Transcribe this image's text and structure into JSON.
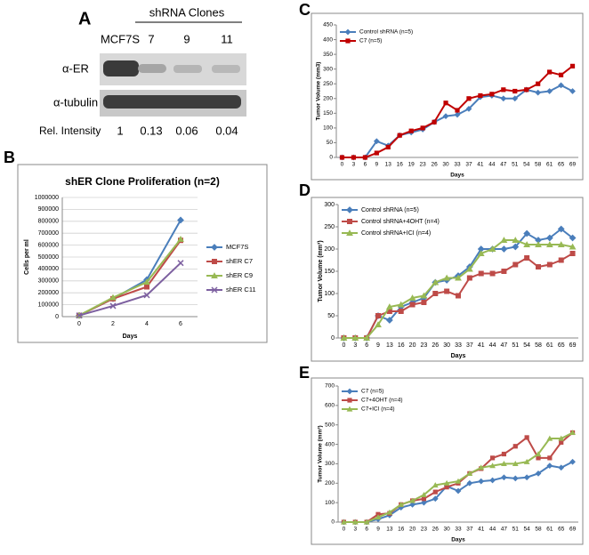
{
  "blot": {
    "panel": "A",
    "group_label": "shRNA Clones",
    "lanes": [
      "MCF7S",
      "7",
      "9",
      "11"
    ],
    "rows": [
      "α-ER",
      "α-tubulin"
    ],
    "intensity_label": "Rel. Intensity",
    "intensities": [
      "1",
      "0.13",
      "0.06",
      "0.04"
    ]
  },
  "chart_data": [
    {
      "type": "line",
      "panel": "B",
      "title": "shER Clone Proliferation (n=2)",
      "x_label": "Days",
      "y_label": "Cells per ml",
      "categories": [
        "0",
        "2",
        "4",
        "6"
      ],
      "ylim": [
        0,
        1000000
      ],
      "yticks": [
        0,
        100000,
        200000,
        300000,
        400000,
        500000,
        600000,
        700000,
        800000,
        900000,
        1000000
      ],
      "grid": true,
      "legend": "right",
      "series": [
        {
          "name": "MCF7S",
          "color": "#4a7ebb",
          "marker": "diamond",
          "values": [
            10000,
            150000,
            310000,
            810000
          ]
        },
        {
          "name": "shER C7",
          "color": "#be4b48",
          "marker": "square",
          "values": [
            10000,
            150000,
            250000,
            640000
          ]
        },
        {
          "name": "shER C9",
          "color": "#98b954",
          "marker": "triangle",
          "values": [
            10000,
            160000,
            290000,
            650000
          ]
        },
        {
          "name": "shER C11",
          "color": "#7d60a0",
          "marker": "cross",
          "values": [
            10000,
            90000,
            180000,
            450000
          ]
        }
      ]
    },
    {
      "type": "line",
      "panel": "C",
      "x_label": "Days",
      "y_label": "Tumor Volume (mm3)",
      "categories": [
        "0",
        "3",
        "6",
        "9",
        "13",
        "16",
        "19",
        "23",
        "26",
        "30",
        "33",
        "37",
        "41",
        "44",
        "47",
        "51",
        "54",
        "58",
        "61",
        "65",
        "69"
      ],
      "ylim": [
        0,
        450
      ],
      "yticks": [
        0,
        50,
        100,
        150,
        200,
        250,
        300,
        350,
        400,
        450
      ],
      "grid": false,
      "legend": "upper left",
      "series": [
        {
          "name": "Control shRNA (n=5)",
          "color": "#4a7ebb",
          "marker": "diamond",
          "values": [
            0,
            0,
            0,
            55,
            40,
            75,
            85,
            95,
            120,
            140,
            145,
            165,
            205,
            210,
            200,
            200,
            230,
            220,
            225,
            245,
            225
          ]
        },
        {
          "name": "C7 (n=5)",
          "color": "#c00000",
          "marker": "square",
          "values": [
            0,
            0,
            0,
            15,
            35,
            75,
            90,
            100,
            120,
            185,
            160,
            200,
            210,
            215,
            230,
            225,
            230,
            250,
            290,
            280,
            310
          ]
        }
      ]
    },
    {
      "type": "line",
      "panel": "D",
      "x_label": "Days",
      "y_label": "Tumor Volume (mm³)",
      "categories": [
        "0",
        "3",
        "6",
        "9",
        "13",
        "16",
        "20",
        "23",
        "26",
        "30",
        "33",
        "37",
        "41",
        "44",
        "47",
        "51",
        "54",
        "58",
        "61",
        "65",
        "69"
      ],
      "ylim": [
        0,
        300
      ],
      "yticks": [
        0,
        50,
        100,
        150,
        200,
        250,
        300
      ],
      "grid": false,
      "legend": "upper left",
      "series": [
        {
          "name": "Control shRNA (n=5)",
          "color": "#4a7ebb",
          "marker": "diamond",
          "values": [
            0,
            0,
            0,
            50,
            40,
            70,
            80,
            90,
            125,
            130,
            140,
            160,
            200,
            200,
            200,
            205,
            235,
            220,
            225,
            245,
            225
          ]
        },
        {
          "name": "Control shRNA+4OHT (n=4)",
          "color": "#be4b48",
          "marker": "square",
          "values": [
            0,
            0,
            0,
            50,
            60,
            60,
            75,
            80,
            100,
            105,
            95,
            135,
            145,
            145,
            150,
            165,
            180,
            160,
            165,
            175,
            190
          ]
        },
        {
          "name": "Control shRNA+ICI (n=4)",
          "color": "#98b954",
          "marker": "triangle",
          "values": [
            0,
            0,
            0,
            30,
            70,
            75,
            90,
            95,
            125,
            135,
            135,
            155,
            190,
            200,
            220,
            220,
            210,
            210,
            210,
            210,
            205
          ]
        }
      ]
    },
    {
      "type": "line",
      "panel": "E",
      "x_label": "Days",
      "y_label": "Tumor Volume (mm³)",
      "categories": [
        "0",
        "3",
        "6",
        "9",
        "13",
        "16",
        "20",
        "23",
        "26",
        "30",
        "33",
        "37",
        "41",
        "44",
        "47",
        "51",
        "54",
        "58",
        "61",
        "65",
        "69"
      ],
      "ylim": [
        0,
        700
      ],
      "yticks": [
        0,
        100,
        200,
        300,
        400,
        500,
        600,
        700
      ],
      "grid": false,
      "legend": "upper left",
      "series": [
        {
          "name": "C7 (n=5)",
          "color": "#4a7ebb",
          "marker": "diamond",
          "values": [
            0,
            0,
            0,
            15,
            35,
            75,
            90,
            100,
            120,
            185,
            160,
            200,
            210,
            215,
            230,
            225,
            230,
            250,
            290,
            280,
            310
          ]
        },
        {
          "name": "C7+4OHT (n=4)",
          "color": "#be4b48",
          "marker": "square",
          "values": [
            0,
            0,
            0,
            40,
            45,
            90,
            110,
            120,
            155,
            180,
            200,
            250,
            275,
            330,
            350,
            390,
            435,
            330,
            330,
            410,
            460
          ]
        },
        {
          "name": "C7+ICI (n=4)",
          "color": "#98b954",
          "marker": "triangle",
          "values": [
            0,
            0,
            0,
            25,
            50,
            90,
            110,
            140,
            190,
            200,
            210,
            250,
            280,
            290,
            300,
            300,
            310,
            350,
            430,
            430,
            460
          ]
        }
      ]
    }
  ]
}
